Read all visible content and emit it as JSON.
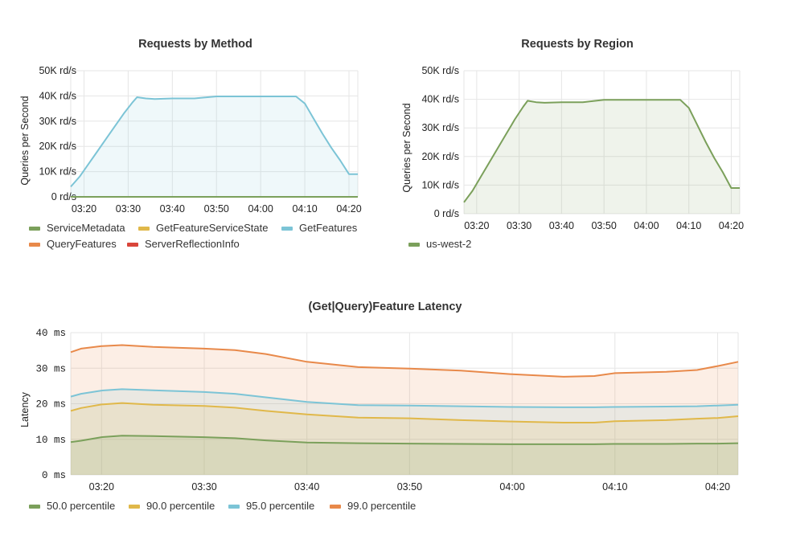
{
  "colors": {
    "green": "#7ba05b",
    "yellow": "#e0b84a",
    "blue": "#7cc4d6",
    "orange": "#e8894a",
    "red": "#d9453a"
  },
  "chart_data": [
    {
      "id": "method",
      "type": "area",
      "title": "Requests by Method",
      "ylabel": "Queries per Second",
      "xlabel": "",
      "yticks": [
        "0 rd/s",
        "10K rd/s",
        "20K rd/s",
        "30K rd/s",
        "40K rd/s",
        "50K rd/s"
      ],
      "ylim": [
        0,
        50000
      ],
      "xticks": [
        "03:20",
        "03:30",
        "03:40",
        "03:50",
        "04:00",
        "04:10",
        "04:20"
      ],
      "x": [
        "03:17",
        "03:19",
        "03:21",
        "03:23",
        "03:25",
        "03:27",
        "03:29",
        "03:31",
        "03:32",
        "03:34",
        "03:36",
        "03:40",
        "03:45",
        "03:50",
        "03:55",
        "04:00",
        "04:05",
        "04:08",
        "04:10",
        "04:12",
        "04:14",
        "04:16",
        "04:18",
        "04:20",
        "04:22"
      ],
      "legend": [
        "ServiceMetadata",
        "GetFeatureServiceState",
        "GetFeatures",
        "QueryFeatures",
        "ServerReflectionInfo"
      ],
      "series": [
        {
          "name": "ServiceMetadata",
          "color": "green",
          "values": [
            0,
            0,
            0,
            0,
            0,
            0,
            0,
            0,
            0,
            0,
            0,
            0,
            0,
            0,
            0,
            0,
            0,
            0,
            0,
            0,
            0,
            0,
            0,
            0,
            0
          ]
        },
        {
          "name": "GetFeatureServiceState",
          "color": "yellow",
          "values": [
            0,
            0,
            0,
            0,
            0,
            0,
            0,
            0,
            0,
            0,
            0,
            0,
            0,
            0,
            0,
            0,
            0,
            0,
            0,
            0,
            0,
            0,
            0,
            0,
            0
          ]
        },
        {
          "name": "GetFeatures",
          "color": "blue",
          "values": [
            4000,
            8000,
            13000,
            18000,
            23000,
            28000,
            33000,
            37500,
            39500,
            39000,
            38800,
            39000,
            39000,
            39800,
            39800,
            39800,
            39800,
            39800,
            37000,
            31000,
            25000,
            19500,
            14500,
            9000,
            9000
          ]
        },
        {
          "name": "QueryFeatures",
          "color": "orange",
          "values": [
            0,
            0,
            0,
            0,
            0,
            0,
            0,
            0,
            0,
            0,
            0,
            0,
            0,
            0,
            0,
            0,
            0,
            0,
            0,
            0,
            0,
            0,
            0,
            0,
            0
          ]
        },
        {
          "name": "ServerReflectionInfo",
          "color": "red",
          "values": [
            0,
            0,
            0,
            0,
            0,
            0,
            0,
            0,
            0,
            0,
            0,
            0,
            0,
            0,
            0,
            0,
            0,
            0,
            0,
            0,
            0,
            0,
            0,
            0,
            0
          ]
        }
      ]
    },
    {
      "id": "region",
      "type": "area",
      "title": "Requests by Region",
      "ylabel": "Queries per Second",
      "xlabel": "",
      "yticks": [
        "0 rd/s",
        "10K rd/s",
        "20K rd/s",
        "30K rd/s",
        "40K rd/s",
        "50K rd/s"
      ],
      "ylim": [
        0,
        50000
      ],
      "xticks": [
        "03:20",
        "03:30",
        "03:40",
        "03:50",
        "04:00",
        "04:10",
        "04:20"
      ],
      "x": [
        "03:17",
        "03:19",
        "03:21",
        "03:23",
        "03:25",
        "03:27",
        "03:29",
        "03:31",
        "03:32",
        "03:34",
        "03:36",
        "03:40",
        "03:45",
        "03:50",
        "03:55",
        "04:00",
        "04:05",
        "04:08",
        "04:10",
        "04:12",
        "04:14",
        "04:16",
        "04:18",
        "04:20",
        "04:22"
      ],
      "legend": [
        "us-west-2"
      ],
      "series": [
        {
          "name": "us-west-2",
          "color": "green",
          "values": [
            4000,
            8000,
            13000,
            18000,
            23000,
            28000,
            33000,
            37500,
            39500,
            39000,
            38800,
            39000,
            39000,
            39800,
            39800,
            39800,
            39800,
            39800,
            37000,
            31000,
            25000,
            19500,
            14500,
            9000,
            9000
          ]
        }
      ]
    },
    {
      "id": "latency",
      "type": "area",
      "title": "(Get|Query)Feature Latency",
      "ylabel": "Latency",
      "xlabel": "",
      "yticks": [
        "0 ms",
        "10 ms",
        "20 ms",
        "30 ms",
        "40 ms"
      ],
      "ylim": [
        0,
        40
      ],
      "xticks": [
        "03:20",
        "03:30",
        "03:40",
        "03:50",
        "04:00",
        "04:10",
        "04:20"
      ],
      "x": [
        "03:17",
        "03:18",
        "03:20",
        "03:22",
        "03:25",
        "03:30",
        "03:33",
        "03:36",
        "03:40",
        "03:45",
        "03:50",
        "03:55",
        "04:00",
        "04:05",
        "04:08",
        "04:10",
        "04:15",
        "04:18",
        "04:20",
        "04:22"
      ],
      "legend": [
        "50.0 percentile",
        "90.0 percentile",
        "95.0 percentile",
        "99.0 percentile"
      ],
      "series": [
        {
          "name": "50.0 percentile",
          "color": "green",
          "values": [
            9.2,
            9.6,
            10.6,
            11.0,
            10.9,
            10.6,
            10.3,
            9.7,
            9.1,
            8.9,
            8.8,
            8.7,
            8.6,
            8.6,
            8.6,
            8.7,
            8.7,
            8.8,
            8.8,
            8.9
          ]
        },
        {
          "name": "90.0 percentile",
          "color": "yellow",
          "values": [
            18.0,
            18.8,
            19.8,
            20.2,
            19.7,
            19.4,
            18.9,
            18.0,
            17.0,
            16.1,
            15.9,
            15.4,
            15.0,
            14.7,
            14.7,
            15.1,
            15.4,
            15.8,
            16.0,
            16.5
          ]
        },
        {
          "name": "95.0 percentile",
          "color": "blue",
          "values": [
            22.0,
            22.8,
            23.7,
            24.1,
            23.8,
            23.3,
            22.8,
            21.8,
            20.5,
            19.6,
            19.5,
            19.3,
            19.1,
            19.0,
            19.0,
            19.1,
            19.2,
            19.3,
            19.5,
            19.7
          ]
        },
        {
          "name": "99.0 percentile",
          "color": "orange",
          "values": [
            34.5,
            35.5,
            36.2,
            36.5,
            36.0,
            35.5,
            35.1,
            34.0,
            31.8,
            30.3,
            29.9,
            29.3,
            28.3,
            27.6,
            27.8,
            28.6,
            29.0,
            29.5,
            30.6,
            31.8
          ]
        }
      ]
    }
  ]
}
